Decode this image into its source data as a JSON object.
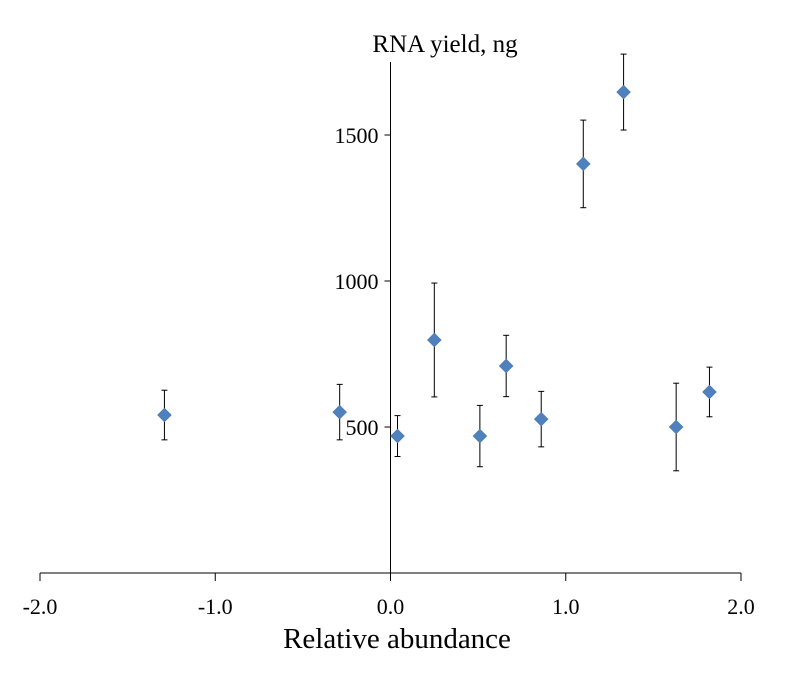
{
  "chart_data": {
    "type": "scatter",
    "title": "RNA yield, ng",
    "xlabel": "Relative abundance",
    "ylabel": "",
    "xlim": [
      -2.0,
      2.0
    ],
    "ylim": [
      0,
      1750
    ],
    "xticks": [
      "-2.0",
      "-1.0",
      "0.0",
      "1.0",
      "2.0"
    ],
    "xtick_values": [
      -2,
      -1,
      0,
      1,
      2
    ],
    "yticks": [
      "500",
      "1000",
      "1500"
    ],
    "ytick_values": [
      500,
      1000,
      1500
    ],
    "grid": false,
    "marker_color": "#4F81BD",
    "series": [
      {
        "name": "RNA yield",
        "points": [
          {
            "x": -1.29,
            "y": 541,
            "err": 85
          },
          {
            "x": -0.29,
            "y": 551,
            "err": 95
          },
          {
            "x": 0.04,
            "y": 469,
            "err": 70
          },
          {
            "x": 0.25,
            "y": 798,
            "err": 195
          },
          {
            "x": 0.51,
            "y": 469,
            "err": 105
          },
          {
            "x": 0.66,
            "y": 709,
            "err": 105
          },
          {
            "x": 0.86,
            "y": 527,
            "err": 95
          },
          {
            "x": 1.1,
            "y": 1401,
            "err": 150
          },
          {
            "x": 1.33,
            "y": 1647,
            "err": 130
          },
          {
            "x": 1.63,
            "y": 500,
            "err": 150
          },
          {
            "x": 1.82,
            "y": 620,
            "err": 85
          }
        ]
      }
    ]
  }
}
